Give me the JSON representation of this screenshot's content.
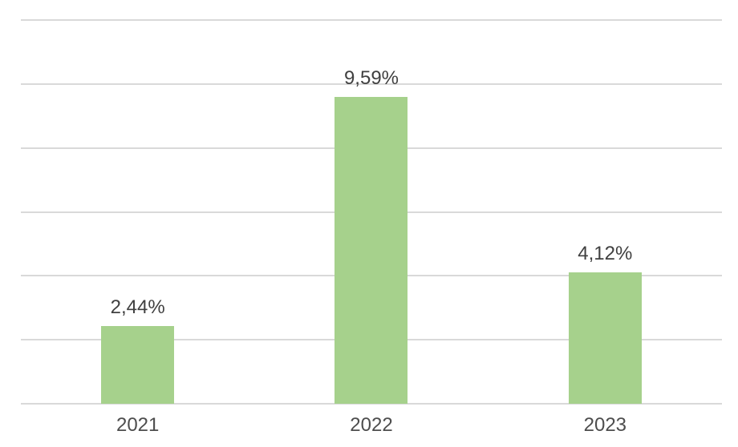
{
  "chart_data": {
    "type": "bar",
    "categories": [
      "2021",
      "2022",
      "2023"
    ],
    "values": [
      2.44,
      9.59,
      4.12
    ],
    "display_values": [
      "2,44%",
      "9,59%",
      "4,12%"
    ],
    "title": "",
    "xlabel": "",
    "ylabel": "",
    "ylim": [
      0,
      12
    ],
    "grid_step": 2,
    "grid": true,
    "legend": false,
    "colors": {
      "bar_fill": "#a6d18c",
      "gridline": "#d9d9d9",
      "data_label": "#404040",
      "category_label": "#4d4d4d",
      "background": "#ffffff"
    }
  }
}
